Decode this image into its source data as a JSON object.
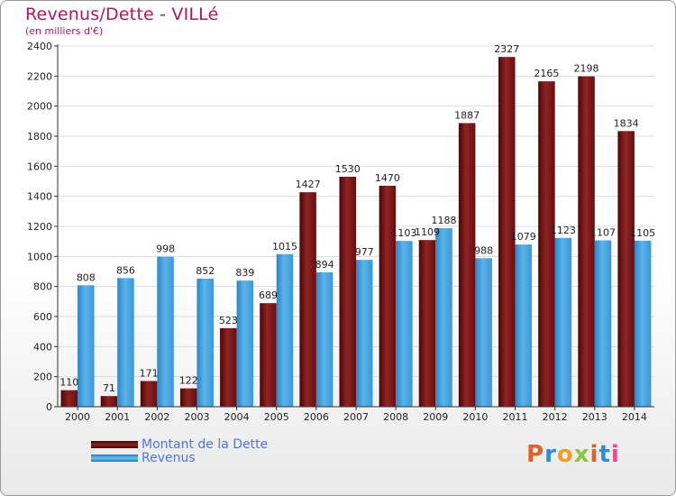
{
  "title": "Revenus/Dette - VILLé",
  "subtitle": "(en milliers d'€)",
  "logo_text": "Proxiti",
  "colors": {
    "dette": "#7a1010",
    "revenus": "#3a9ad9",
    "title": "#b0185b",
    "legend_text": "#4f74e6"
  },
  "chart_data": {
    "type": "bar",
    "categories": [
      "2000",
      "2001",
      "2002",
      "2003",
      "2004",
      "2005",
      "2006",
      "2007",
      "2008",
      "2009",
      "2010",
      "2011",
      "2012",
      "2013",
      "2014"
    ],
    "series": [
      {
        "name": "Montant de la Dette",
        "values": [
          110,
          71,
          171,
          122,
          523,
          689,
          1427,
          1530,
          1470,
          1109,
          1887,
          2327,
          2165,
          2198,
          1834
        ]
      },
      {
        "name": "Revenus",
        "values": [
          808,
          856,
          998,
          852,
          839,
          1015,
          894,
          977,
          1103,
          1188,
          988,
          1079,
          1123,
          1107,
          1105
        ]
      }
    ],
    "data_labels": [
      [
        "110",
        "71",
        "171",
        "122",
        "523",
        "689",
        "1427",
        "1530",
        "1470",
        "1109",
        "1887",
        "2327",
        "2165",
        "2198",
        "1834"
      ],
      [
        "808",
        "856",
        "998",
        "852",
        "839",
        "1015",
        "894",
        "977",
        "1103",
        "1188",
        "988",
        "1079",
        "1123",
        "1107",
        "1105"
      ]
    ],
    "yticks": [
      0,
      200,
      400,
      600,
      800,
      1000,
      1200,
      1400,
      1600,
      1800,
      2000,
      2200,
      2400
    ],
    "ylim": [
      0,
      2400
    ],
    "grid": true,
    "legend_position": "bottom-left"
  }
}
